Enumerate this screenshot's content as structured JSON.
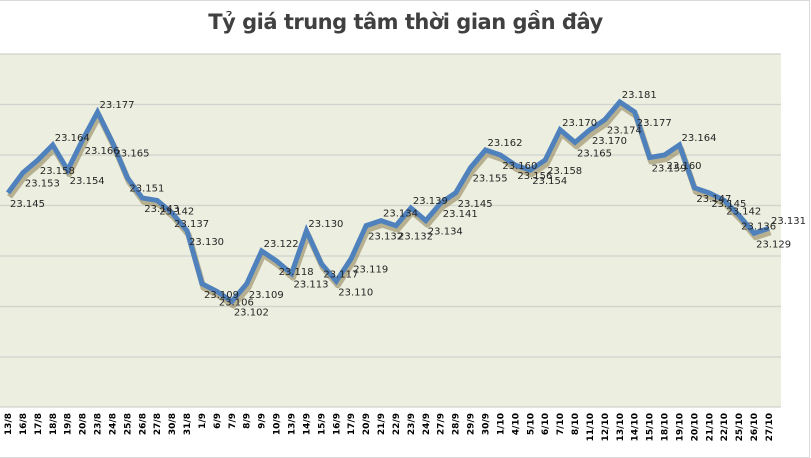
{
  "title": "Tỷ giá trung tâm thời gian gần đây",
  "colors": {
    "line": "#4F81BD",
    "shadow": "#8C7E4E",
    "plot_bg": "#ECEEDF",
    "grid": "#D0D3CC"
  },
  "chart_data": {
    "type": "line",
    "title": "Tỷ giá trung tâm thời gian gần đây",
    "xlabel": "",
    "ylabel": "",
    "ylim": [
      23.08,
      23.2
    ],
    "y_gridlines": [
      23.08,
      23.1,
      23.12,
      23.14,
      23.16,
      23.18,
      23.2
    ],
    "grid": true,
    "legend": "none",
    "categories": [
      "13/8",
      "16/8",
      "17/8",
      "18/8",
      "19/8",
      "20/8",
      "23/8",
      "24/8",
      "25/8",
      "26/8",
      "27/8",
      "30/8",
      "31/8",
      "1/9",
      "6/9",
      "7/9",
      "8/9",
      "9/9",
      "10/9",
      "13/9",
      "14/9",
      "15/9",
      "16/9",
      "17/9",
      "20/9",
      "21/9",
      "22/9",
      "23/9",
      "24/9",
      "27/9",
      "28/9",
      "29/9",
      "30/9",
      "1/10",
      "4/10",
      "5/10",
      "6/10",
      "7/10",
      "8/10",
      "11/10",
      "12/10",
      "13/10",
      "14/10",
      "15/10",
      "18/10",
      "19/10",
      "20/10",
      "21/10",
      "22/10",
      "25/10",
      "26/10",
      "27/10"
    ],
    "series": [
      {
        "name": "Tỷ giá trung tâm",
        "values": [
          23.145,
          23.153,
          23.158,
          23.164,
          23.154,
          23.166,
          23.177,
          23.165,
          23.151,
          23.143,
          23.142,
          23.137,
          23.13,
          23.109,
          23.106,
          23.102,
          23.109,
          23.122,
          23.118,
          23.113,
          23.13,
          23.117,
          23.11,
          23.119,
          23.132,
          23.134,
          23.132,
          23.139,
          23.134,
          23.141,
          23.145,
          23.155,
          23.162,
          23.16,
          23.156,
          23.154,
          23.158,
          23.17,
          23.165,
          23.17,
          23.174,
          23.181,
          23.177,
          23.159,
          23.16,
          23.164,
          23.147,
          23.145,
          23.142,
          23.136,
          23.129,
          23.131
        ]
      }
    ]
  }
}
